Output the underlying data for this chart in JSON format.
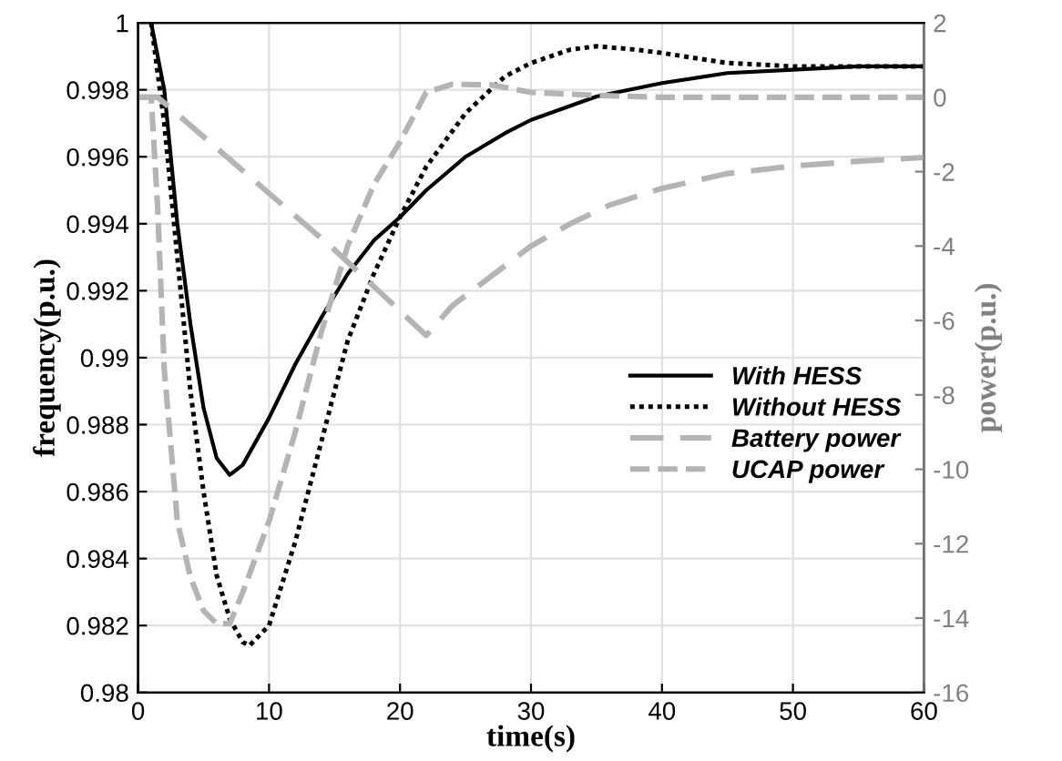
{
  "chart_data": {
    "type": "line",
    "xlabel": "time(s)",
    "ylabel": "frequency(p.u.)",
    "y2label": "power(p.u.)",
    "xlim": [
      0,
      60
    ],
    "xticks": [
      0,
      10,
      20,
      30,
      40,
      50,
      60
    ],
    "ylim": [
      0.98,
      1
    ],
    "yticks": [
      0.98,
      0.982,
      0.984,
      0.986,
      0.988,
      0.99,
      0.992,
      0.994,
      0.996,
      0.998,
      1
    ],
    "y2lim": [
      -16,
      2
    ],
    "y2ticks": [
      -16,
      -14,
      -12,
      -10,
      -8,
      -6,
      -4,
      -2,
      0,
      2
    ],
    "grid": true,
    "legend": "right",
    "series": [
      {
        "name": "With HESS",
        "color": "#000000",
        "line_style": "solid",
        "x": [
          1,
          2,
          3,
          4,
          5,
          6,
          7,
          8,
          10,
          12,
          14,
          16,
          18,
          20,
          22,
          25,
          28,
          30,
          35,
          40,
          45,
          50,
          55,
          60
        ],
        "values": [
          1.0,
          0.998,
          0.994,
          0.991,
          0.9885,
          0.987,
          0.9865,
          0.9868,
          0.9882,
          0.9898,
          0.9912,
          0.9925,
          0.9935,
          0.9942,
          0.995,
          0.996,
          0.9967,
          0.9971,
          0.9978,
          0.9982,
          0.9985,
          0.9986,
          0.9987,
          0.9987
        ]
      },
      {
        "name": "Without HESS",
        "color": "#000000",
        "line_style": "dotted",
        "x": [
          1,
          2,
          3,
          4,
          5,
          6,
          7,
          8,
          8.5,
          10,
          12,
          14,
          16,
          18,
          20,
          22,
          25,
          28,
          30,
          33,
          35,
          38,
          40,
          45,
          50,
          60
        ],
        "values": [
          1.0,
          0.997,
          0.993,
          0.989,
          0.986,
          0.9835,
          0.9822,
          0.9815,
          0.9814,
          0.982,
          0.9845,
          0.9875,
          0.9905,
          0.9925,
          0.9942,
          0.9957,
          0.9973,
          0.9984,
          0.9988,
          0.9992,
          0.9993,
          0.9992,
          0.9991,
          0.9988,
          0.9987,
          0.9987
        ]
      },
      {
        "name": "Battery power",
        "color": "#b4b4b4",
        "line_style": "dashed",
        "axis": "y2",
        "x": [
          0,
          1.5,
          15,
          22,
          24,
          27,
          30,
          33,
          36,
          40,
          45,
          50,
          55,
          60
        ],
        "values": [
          0,
          0,
          -4.1,
          -6.4,
          -5.6,
          -4.8,
          -4.0,
          -3.4,
          -2.9,
          -2.45,
          -2.05,
          -1.85,
          -1.72,
          -1.62
        ]
      },
      {
        "name": "UCAP power",
        "color": "#b4b4b4",
        "line_style": "dashed",
        "axis": "y2",
        "x": [
          0,
          1,
          1.5,
          2,
          3,
          4,
          5,
          6,
          7,
          8,
          10,
          12,
          14,
          16,
          18,
          20,
          22,
          24,
          27,
          30,
          35,
          40,
          60
        ],
        "values": [
          0,
          0,
          -3,
          -7.3,
          -11.4,
          -12.9,
          -13.8,
          -14.15,
          -14.15,
          -13.3,
          -11.4,
          -9.0,
          -6.3,
          -4.0,
          -2.35,
          -1.2,
          0.13,
          0.35,
          0.33,
          0.13,
          0.05,
          0,
          0
        ]
      }
    ]
  }
}
